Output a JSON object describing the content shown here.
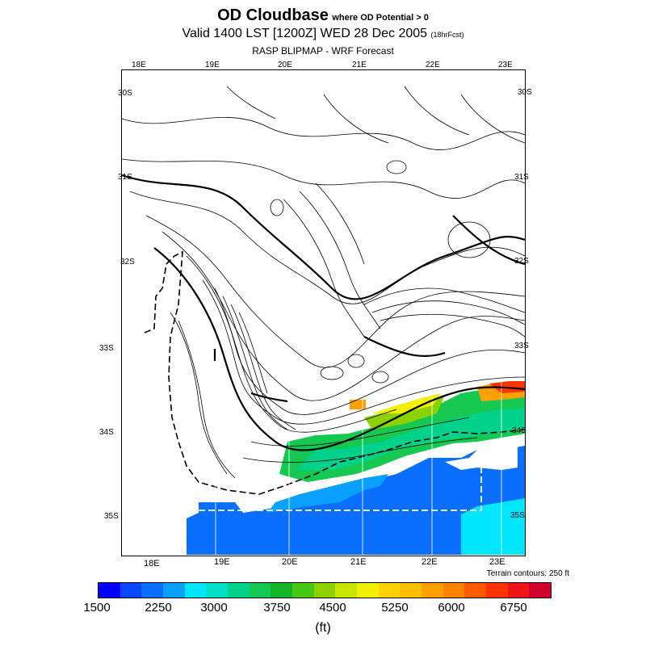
{
  "header": {
    "title": "OD Cloudbase",
    "title_note": "where OD Potential > 0",
    "valid_time": "Valid 1400 LST [1200Z] WED 28 Dec 2005",
    "forecast_hours": "(18hrFcst)",
    "subtitle": "RASP BLIPMAP - WRF Forecast"
  },
  "map": {
    "top_longitudes": [
      "18E",
      "19E",
      "20E",
      "21E",
      "22E",
      "23E"
    ],
    "bottom_longitudes": [
      "18E",
      "19E",
      "20E",
      "21E",
      "22E",
      "23E"
    ],
    "left_latitudes": [
      "30S",
      "31S",
      "32S",
      "33S",
      "34S",
      "35S"
    ],
    "right_latitudes": [
      "30S",
      "31S",
      "32S",
      "33S",
      "34S",
      "35S"
    ],
    "terrain_note": "Terrain contours: 250 ft"
  },
  "colorbar": {
    "unit": "(ft)",
    "labels": [
      "1500",
      "2250",
      "3000",
      "3750",
      "4500",
      "5250",
      "6000",
      "6750"
    ],
    "colors": [
      "#0000ff",
      "#0a46ff",
      "#0a6eff",
      "#0aa0ff",
      "#00e6ff",
      "#00e0c8",
      "#00d28c",
      "#14c850",
      "#14b428",
      "#46c814",
      "#8cd200",
      "#c8e600",
      "#f0f000",
      "#ffd200",
      "#ffbe00",
      "#ffa000",
      "#ff8200",
      "#ff5a00",
      "#ff3200",
      "#f01414",
      "#d2002d"
    ]
  }
}
